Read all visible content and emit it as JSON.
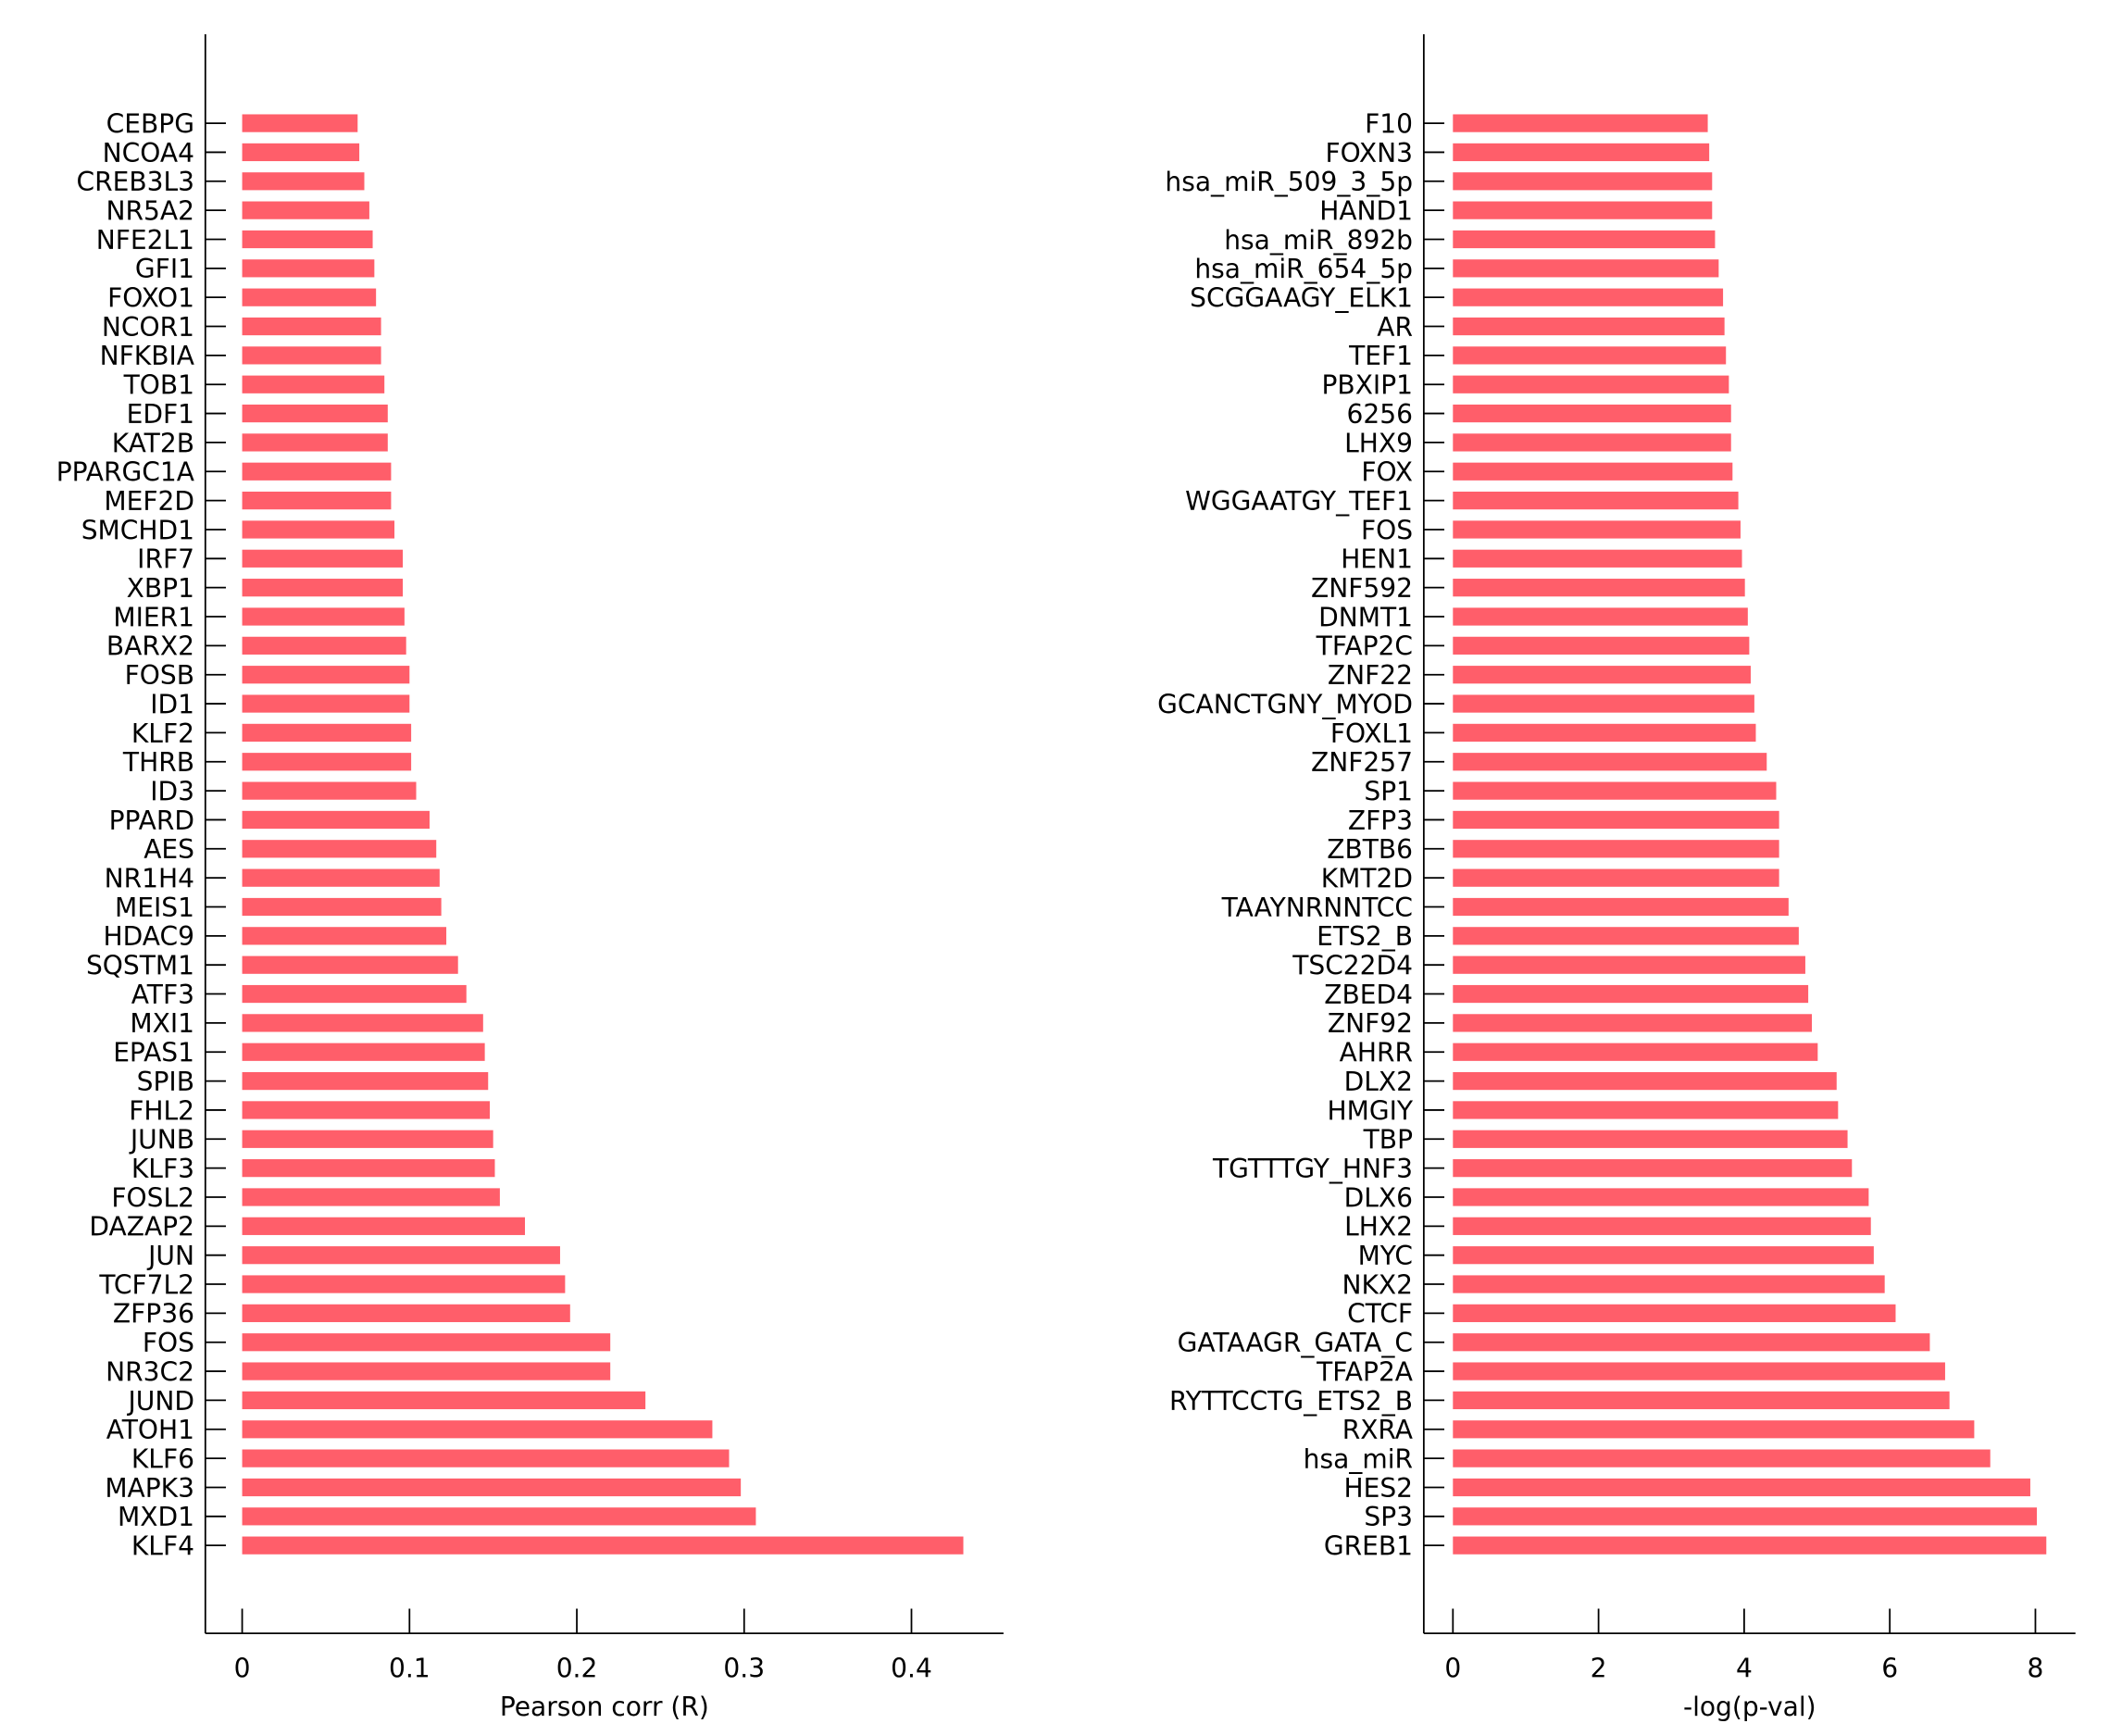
{
  "colors": {
    "bar": "#ff5e6a"
  },
  "chart_data": [
    {
      "type": "bar",
      "orientation": "horizontal",
      "xlabel": "Pearson corr (R)",
      "xlim": [
        -0.022,
        0.455
      ],
      "xticks": [
        0,
        0.1,
        0.2,
        0.3,
        0.4
      ],
      "xtick_labels": [
        "0",
        "0.1",
        "0.2",
        "0.3",
        "0.4"
      ],
      "categories": [
        "CEBPG",
        "NCOA4",
        "CREB3L3",
        "NR5A2",
        "NFE2L1",
        "GFI1",
        "FOXO1",
        "NCOR1",
        "NFKBIA",
        "TOB1",
        "EDF1",
        "KAT2B",
        "PPARGC1A",
        "MEF2D",
        "SMCHD1",
        "IRF7",
        "XBP1",
        "MIER1",
        "BARX2",
        "FOSB",
        "ID1",
        "KLF2",
        "THRB",
        "ID3",
        "PPARD",
        "AES",
        "NR1H4",
        "MEIS1",
        "HDAC9",
        "SQSTM1",
        "ATF3",
        "MXI1",
        "EPAS1",
        "SPIB",
        "FHL2",
        "JUNB",
        "KLF3",
        "FOSL2",
        "DAZAP2",
        "JUN",
        "TCF7L2",
        "ZFP36",
        "FOS",
        "NR3C2",
        "JUND",
        "ATOH1",
        "KLF6",
        "MAPK3",
        "MXD1",
        "KLF4"
      ],
      "values": [
        0.069,
        0.07,
        0.073,
        0.076,
        0.078,
        0.079,
        0.08,
        0.083,
        0.083,
        0.085,
        0.087,
        0.087,
        0.089,
        0.089,
        0.091,
        0.096,
        0.096,
        0.097,
        0.098,
        0.1,
        0.1,
        0.101,
        0.101,
        0.104,
        0.112,
        0.116,
        0.118,
        0.119,
        0.122,
        0.129,
        0.134,
        0.144,
        0.145,
        0.147,
        0.148,
        0.15,
        0.151,
        0.154,
        0.169,
        0.19,
        0.193,
        0.196,
        0.22,
        0.22,
        0.241,
        0.281,
        0.291,
        0.298,
        0.307,
        0.431
      ]
    },
    {
      "type": "bar",
      "orientation": "horizontal",
      "xlabel": "-log(p-val)",
      "xlim": [
        -0.4,
        8.55
      ],
      "xticks": [
        0,
        2,
        4,
        6,
        8
      ],
      "xtick_labels": [
        "0",
        "2",
        "4",
        "6",
        "8"
      ],
      "categories": [
        "F10",
        "FOXN3",
        "hsa_miR_509_3_5p",
        "HAND1",
        "hsa_miR_892b",
        "hsa_miR_654_5p",
        "SCGGAAGY_ELK1",
        "AR",
        "TEF1",
        "PBXIP1",
        "6256",
        "LHX9",
        "FOX",
        "WGGAATGY_TEF1",
        "FOS",
        "HEN1",
        "ZNF592",
        "DNMT1",
        "TFAP2C",
        "ZNF22",
        "GCANCTGNY_MYOD",
        "FOXL1",
        "ZNF257",
        "SP1",
        "ZFP3",
        "ZBTB6",
        "KMT2D",
        "TAAYNRNNTCC",
        "ETS2_B",
        "TSC22D4",
        "ZBED4",
        "ZNF92",
        "AHRR",
        "DLX2",
        "HMGIY",
        "TBP",
        "TGTTTGY_HNF3",
        "DLX6",
        "LHX2",
        "MYC",
        "NKX2",
        "CTCF",
        "GATAAGR_GATA_C",
        "TFAP2A",
        "RYTTCCTG_ETS2_B",
        "RXRA",
        "hsa_miR",
        "HES2",
        "SP3",
        "GREB1"
      ],
      "values": [
        3.5,
        3.52,
        3.56,
        3.56,
        3.6,
        3.65,
        3.71,
        3.73,
        3.75,
        3.79,
        3.82,
        3.82,
        3.84,
        3.92,
        3.95,
        3.97,
        4.01,
        4.05,
        4.07,
        4.09,
        4.14,
        4.16,
        4.31,
        4.44,
        4.48,
        4.48,
        4.48,
        4.61,
        4.75,
        4.84,
        4.88,
        4.93,
        5.01,
        5.27,
        5.29,
        5.42,
        5.48,
        5.71,
        5.74,
        5.78,
        5.93,
        6.08,
        6.55,
        6.76,
        6.82,
        7.16,
        7.38,
        7.93,
        8.02,
        8.15
      ]
    }
  ]
}
